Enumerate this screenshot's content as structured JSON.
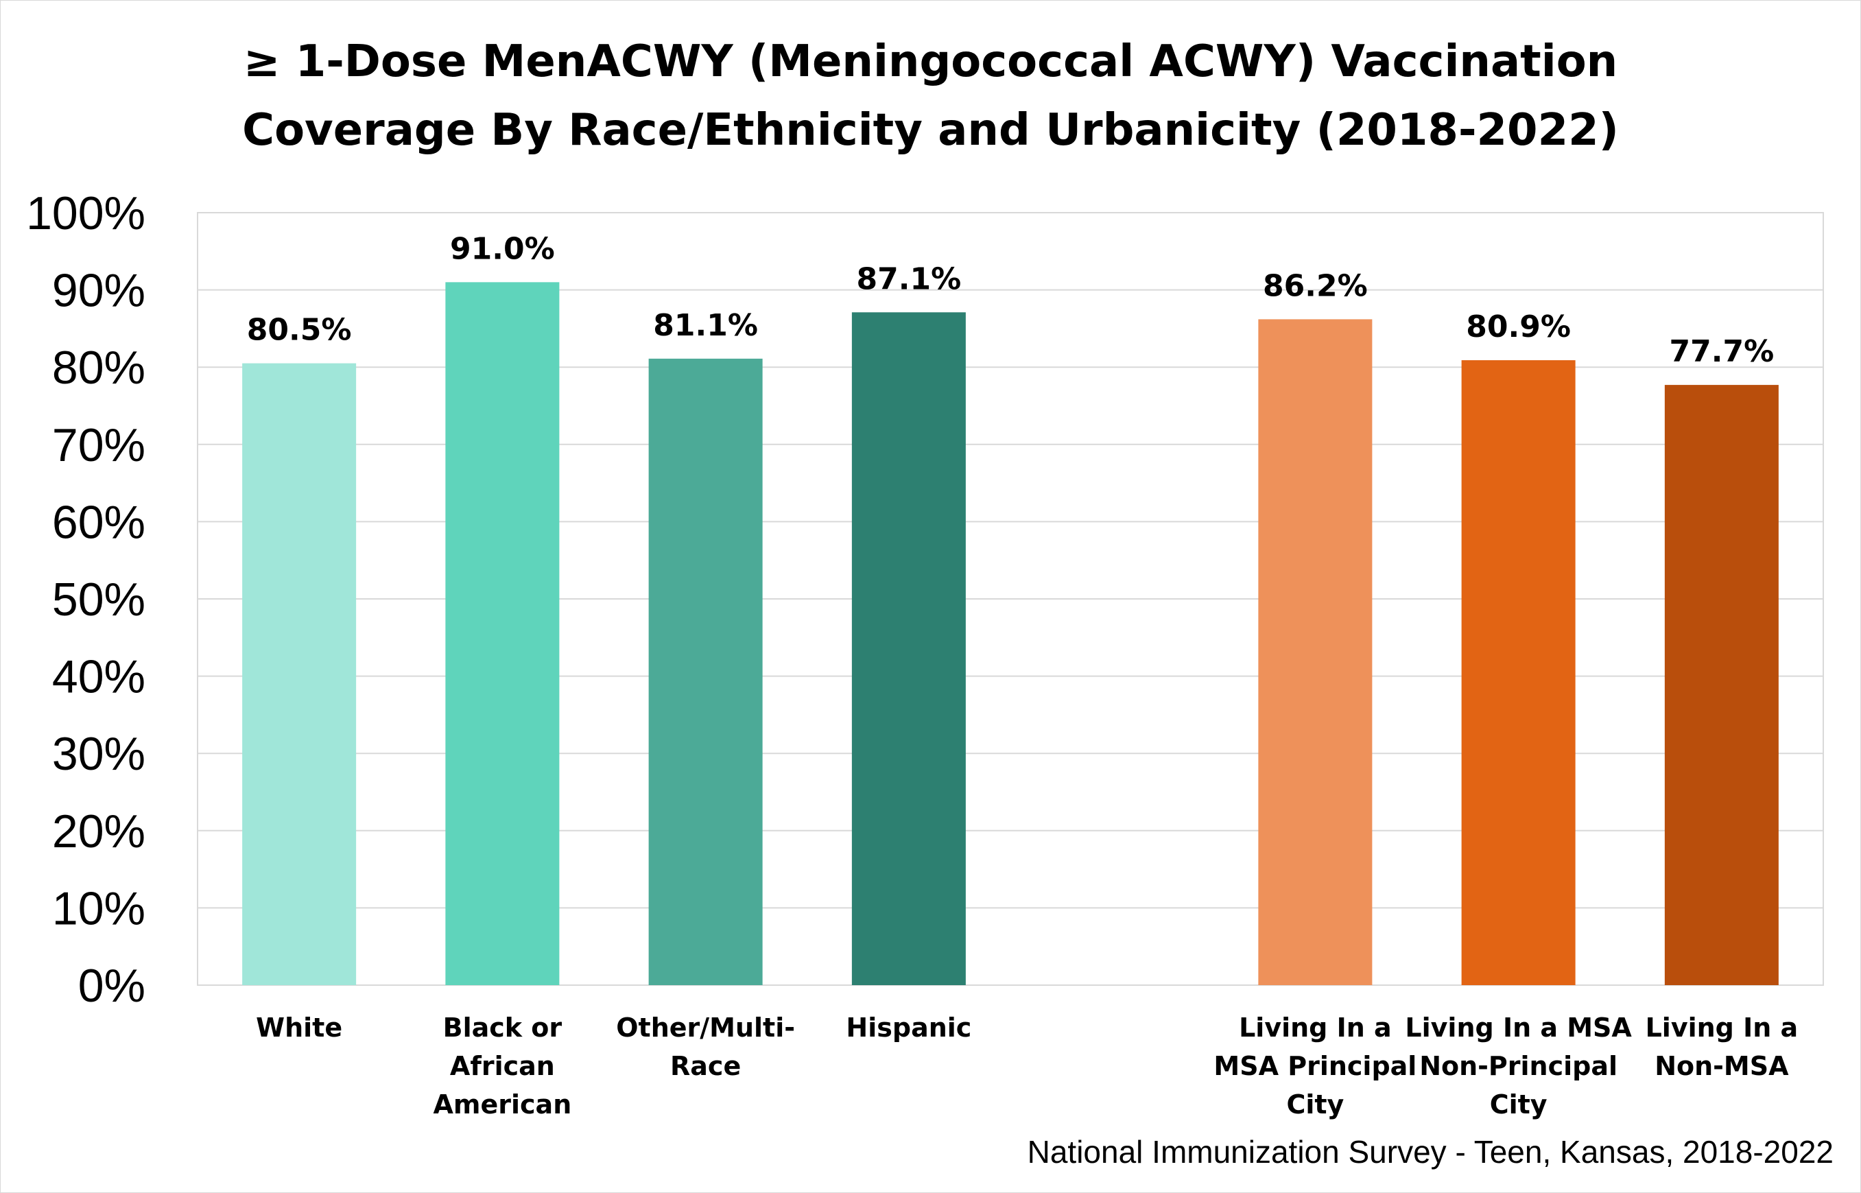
{
  "chart_data": {
    "type": "bar",
    "title_lines": [
      "≥ 1-Dose MenACWY (Meningococcal ACWY) Vaccination",
      "Coverage By Race/Ethnicity and Urbanicity (2018-2022)"
    ],
    "categories": [
      [
        "White"
      ],
      [
        "Black or",
        "African",
        "American"
      ],
      [
        "Other/Multi-",
        "Race"
      ],
      [
        "Hispanic"
      ],
      [],
      [
        "Living In a",
        "MSA Principal",
        "City"
      ],
      [
        "Living In a MSA",
        "Non-Principal",
        "City"
      ],
      [
        "Living In a",
        "Non-MSA"
      ]
    ],
    "values": [
      80.5,
      91.0,
      81.1,
      87.1,
      null,
      86.2,
      80.9,
      77.7
    ],
    "data_labels": [
      "80.5%",
      "91.0%",
      "81.1%",
      "87.1%",
      "",
      "86.2%",
      "80.9%",
      "77.7%"
    ],
    "colors": [
      "#a0e6d9",
      "#5fd4bb",
      "#4caa97",
      "#2d8071",
      null,
      "#ee915a",
      "#e26414",
      "#b94e0c"
    ],
    "ylim": [
      0,
      100
    ],
    "yticks": [
      "0%",
      "10%",
      "20%",
      "30%",
      "40%",
      "50%",
      "60%",
      "70%",
      "80%",
      "90%",
      "100%"
    ],
    "grid": true,
    "legend": "none",
    "xlabel": "",
    "ylabel": ""
  },
  "source_note": "National Immunization Survey - Teen, Kansas, 2018-2022"
}
